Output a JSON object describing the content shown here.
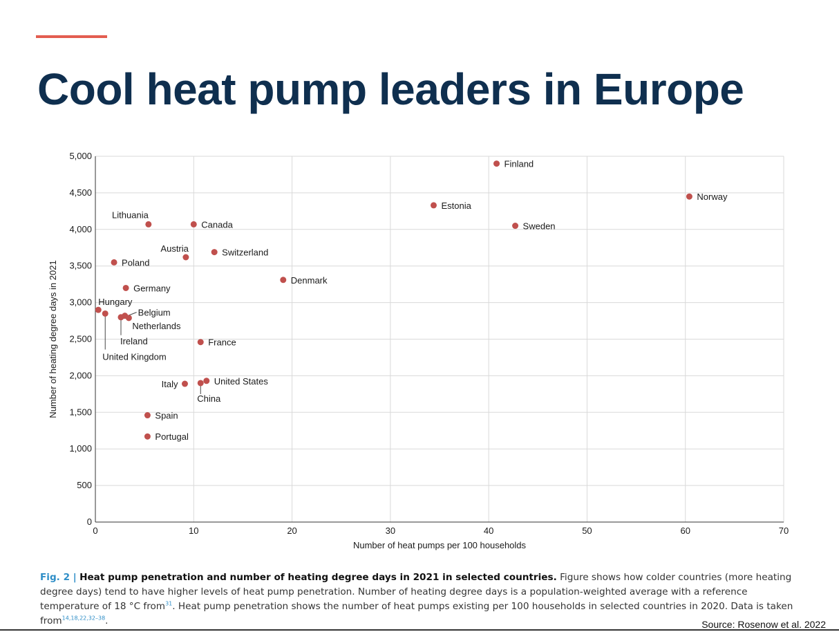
{
  "slide": {
    "title": "Cool heat pump leaders in Europe",
    "accent_color": "#e35d50",
    "title_color": "#0f2f4f",
    "source": "Source: Rosenow et al. 2022"
  },
  "caption": {
    "fig_label": "Fig. 2 |",
    "bold_text": "Heat pump penetration and number of heating degree days in 2021 in selected countries.",
    "text_1": "Figure shows how colder countries (more heating degree days) tend to have higher levels of heat pump penetration. Number of heating degree days is a population-weighted average with a reference temperature of 18 °C from",
    "ref_1": "31",
    "text_2": ". Heat pump penetration shows the number of heat pumps existing per 100 households in selected countries in 2020. Data is taken from",
    "ref_2": "14,18,22,32–38",
    "text_3": "."
  },
  "chart_data": {
    "type": "scatter",
    "title": "",
    "xlabel": "Number of heat pumps per 100 households",
    "ylabel": "Number of heating degree days in 2021",
    "xlim": [
      0,
      70
    ],
    "ylim": [
      0,
      5000
    ],
    "x_ticks": [
      0,
      10,
      20,
      30,
      40,
      50,
      60,
      70
    ],
    "y_ticks": [
      0,
      500,
      1000,
      1500,
      2000,
      2500,
      3000,
      3500,
      4000,
      4500,
      5000
    ],
    "y_tick_labels": [
      "0",
      "500",
      "1,000",
      "1,500",
      "2,000",
      "2,500",
      "3,000",
      "3,500",
      "4,000",
      "4,500",
      "5,000"
    ],
    "grid": true,
    "point_color": "#c0504d",
    "points": [
      {
        "label": "Finland",
        "x": 40.8,
        "y": 4900
      },
      {
        "label": "Norway",
        "x": 60.4,
        "y": 4450
      },
      {
        "label": "Estonia",
        "x": 34.4,
        "y": 4330
      },
      {
        "label": "Sweden",
        "x": 42.7,
        "y": 4050
      },
      {
        "label": "Lithuania",
        "x": 5.4,
        "y": 4070
      },
      {
        "label": "Canada",
        "x": 10.0,
        "y": 4070
      },
      {
        "label": "Austria",
        "x": 9.2,
        "y": 3620
      },
      {
        "label": "Switzerland",
        "x": 12.1,
        "y": 3690
      },
      {
        "label": "Poland",
        "x": 1.9,
        "y": 3550
      },
      {
        "label": "Denmark",
        "x": 19.1,
        "y": 3310
      },
      {
        "label": "Germany",
        "x": 3.1,
        "y": 3200
      },
      {
        "label": "Hungary",
        "x": 0.3,
        "y": 2900
      },
      {
        "label": "United Kingdom",
        "x": 1.0,
        "y": 2850
      },
      {
        "label": "Ireland",
        "x": 2.6,
        "y": 2800
      },
      {
        "label": "Belgium",
        "x": 3.0,
        "y": 2820
      },
      {
        "label": "Netherlands",
        "x": 3.4,
        "y": 2790
      },
      {
        "label": "France",
        "x": 10.7,
        "y": 2460
      },
      {
        "label": "Italy",
        "x": 9.1,
        "y": 1890
      },
      {
        "label": "China",
        "x": 10.7,
        "y": 1900
      },
      {
        "label": "United States",
        "x": 11.3,
        "y": 1930
      },
      {
        "label": "Spain",
        "x": 5.3,
        "y": 1460
      },
      {
        "label": "Portugal",
        "x": 5.3,
        "y": 1170
      }
    ]
  }
}
